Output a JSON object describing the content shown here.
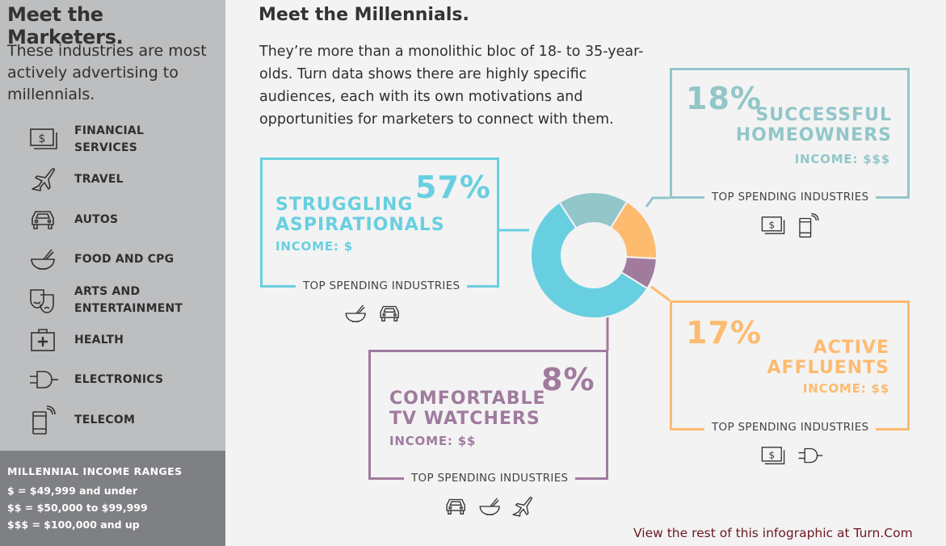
{
  "sidebar": {
    "title": "Meet the Marketers.",
    "intro": "These industries are most actively advertising to millennials.",
    "industries": [
      {
        "label": "FINANCIAL\nSERVICES",
        "icon": "financial-services-icon"
      },
      {
        "label": "TRAVEL",
        "icon": "airplane-icon"
      },
      {
        "label": "AUTOS",
        "icon": "car-icon"
      },
      {
        "label": "FOOD AND CPG",
        "icon": "bowl-icon"
      },
      {
        "label": "ARTS AND\nENTERTAINMENT",
        "icon": "theater-masks-icon"
      },
      {
        "label": "HEALTH",
        "icon": "first-aid-kit-icon"
      },
      {
        "label": "ELECTRONICS",
        "icon": "plug-icon"
      },
      {
        "label": "TELECOM",
        "icon": "mobile-phone-icon"
      }
    ],
    "legend": {
      "title": "MILLENNIAL INCOME RANGES",
      "rows": [
        "$ = $49,999 and under",
        "$$ = $50,000 to $99,999",
        "$$$ = $100,000 and up"
      ]
    }
  },
  "main": {
    "title": "Meet the Millennials.",
    "intro": "They’re more than a monolithic bloc of 18- to 35-year-olds. Turn data shows there are highly specific audiences, each with its own motivations and opportunities for marketers to connect with them.",
    "top_spending_label": "TOP SPENDING INDUSTRIES",
    "footer": "View the rest of this infographic at Turn.Com"
  },
  "segments": {
    "struggling": {
      "pct": "57%",
      "name": "STRUGGLING\nASPIRATIONALS",
      "income": "INCOME: $",
      "icons": [
        "bowl-icon",
        "car-icon"
      ]
    },
    "homeowners": {
      "pct": "18%",
      "name": "SUCCESSFUL\nHOMEOWNERS",
      "income": "INCOME: $$$",
      "icons": [
        "financial-services-icon",
        "mobile-phone-icon"
      ]
    },
    "affluents": {
      "pct": "17%",
      "name": "ACTIVE\nAFFLUENTS",
      "income": "INCOME: $$",
      "icons": [
        "financial-services-icon",
        "plug-icon"
      ]
    },
    "tv": {
      "pct": "8%",
      "name": "COMFORTABLE\nTV WATCHERS",
      "income": "INCOME: $$",
      "icons": [
        "car-icon",
        "bowl-icon",
        "airplane-icon"
      ]
    }
  },
  "colors": {
    "struggling": "#68cfe0",
    "homeowners": "#92c6c9",
    "affluents": "#fdbb6f",
    "tv": "#a07b9e",
    "sidebar": "#bdbec0",
    "legend_bg": "#7e8083",
    "footer_text": "#6b1820"
  },
  "chart_data": {
    "type": "pie",
    "categories": [
      "Struggling Aspirationals",
      "Successful Homeowners",
      "Active Affluents",
      "Comfortable TV Watchers"
    ],
    "values": [
      57,
      18,
      17,
      8
    ],
    "colors": [
      "#68cfe0",
      "#92c6c9",
      "#fdbb6f",
      "#a07b9e"
    ]
  }
}
